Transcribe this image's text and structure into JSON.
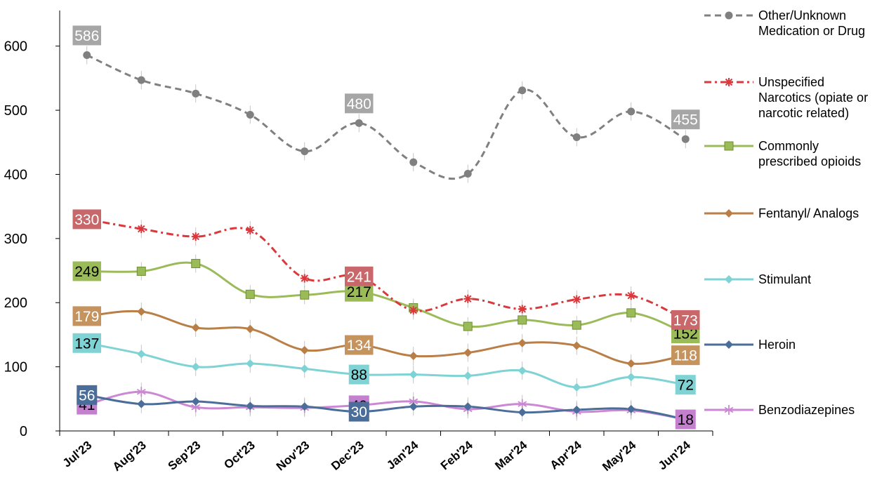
{
  "chart_data": {
    "type": "line",
    "title": "",
    "xlabel": "",
    "ylabel": "",
    "categories": [
      "Jul'23",
      "Aug'23",
      "Sep'23",
      "Oct'23",
      "Nov'23",
      "Dec'23",
      "Jan'24",
      "Feb'24",
      "Mar'24",
      "Apr'24",
      "May'24",
      "Jun'24"
    ],
    "ylim": [
      0,
      650
    ],
    "yticks": [
      0,
      100,
      200,
      300,
      400,
      500,
      600
    ],
    "grid": false,
    "legend_position": "right",
    "series": [
      {
        "name": "Other/Unknown Medication or Drug",
        "color": "#808080",
        "dash": "dashed",
        "marker": "circle",
        "values": [
          586,
          547,
          526,
          493,
          436,
          480,
          419,
          401,
          531,
          458,
          498,
          455
        ],
        "labels": [
          {
            "i": 0,
            "text": "586"
          },
          {
            "i": 5,
            "text": "480"
          },
          {
            "i": 11,
            "text": "455"
          }
        ],
        "label_bg": "#a6a6a6",
        "label_fg": "#ffffff"
      },
      {
        "name": "Unspecified Narcotics (opiate or narcotic related)",
        "color": "#d9393c",
        "dash": "dashdot",
        "marker": "star",
        "values": [
          330,
          315,
          303,
          313,
          238,
          241,
          188,
          206,
          190,
          205,
          211,
          173
        ],
        "labels": [
          {
            "i": 0,
            "text": "330"
          },
          {
            "i": 5,
            "text": "241"
          },
          {
            "i": 11,
            "text": "173"
          }
        ],
        "label_bg": "#c8686b",
        "label_fg": "#ffffff"
      },
      {
        "name": "Commonly prescribed opioids",
        "color": "#9bbb59",
        "dash": "solid",
        "marker": "square",
        "values": [
          249,
          249,
          261,
          213,
          212,
          217,
          192,
          163,
          173,
          165,
          184,
          152
        ],
        "labels": [
          {
            "i": 0,
            "text": "249"
          },
          {
            "i": 5,
            "text": "217"
          },
          {
            "i": 11,
            "text": "152"
          }
        ],
        "label_bg": "#9bbb59",
        "label_fg": "#000000"
      },
      {
        "name": "Fentanyl/ Analogs",
        "color": "#b97f46",
        "dash": "solid",
        "marker": "diamond",
        "values": [
          179,
          186,
          161,
          159,
          126,
          134,
          117,
          122,
          137,
          133,
          105,
          118
        ],
        "labels": [
          {
            "i": 0,
            "text": "179"
          },
          {
            "i": 5,
            "text": "134"
          },
          {
            "i": 11,
            "text": "118"
          }
        ],
        "label_bg": "#c5935d",
        "label_fg": "#ffffff"
      },
      {
        "name": "Stimulant",
        "color": "#7fd3d4",
        "dash": "solid",
        "marker": "diamond",
        "values": [
          137,
          120,
          100,
          105,
          97,
          88,
          88,
          86,
          94,
          68,
          84,
          72
        ],
        "labels": [
          {
            "i": 0,
            "text": "137"
          },
          {
            "i": 5,
            "text": "88"
          },
          {
            "i": 11,
            "text": "72"
          }
        ],
        "label_bg": "#7fd3d4",
        "label_fg": "#000000"
      },
      {
        "name": "Heroin",
        "color": "#4a6d9a",
        "dash": "solid",
        "marker": "diamond",
        "values": [
          56,
          42,
          46,
          39,
          38,
          30,
          38,
          38,
          29,
          33,
          34,
          18
        ],
        "labels": [
          {
            "i": 0,
            "text": "56"
          },
          {
            "i": 5,
            "text": "30"
          }
        ],
        "label_bg": "#4a6d9a",
        "label_fg": "#ffffff"
      },
      {
        "name": "Benzodiazepines",
        "color": "#cc88d4",
        "dash": "solid",
        "marker": "asterisk",
        "values": [
          41,
          61,
          37,
          37,
          36,
          40,
          46,
          34,
          42,
          30,
          32,
          18
        ],
        "labels": [
          {
            "i": 0,
            "text": "41"
          },
          {
            "i": 5,
            "text": "40"
          },
          {
            "i": 11,
            "text": "18"
          }
        ],
        "label_bg": "#c47fcf",
        "label_fg": "#000000"
      }
    ]
  }
}
